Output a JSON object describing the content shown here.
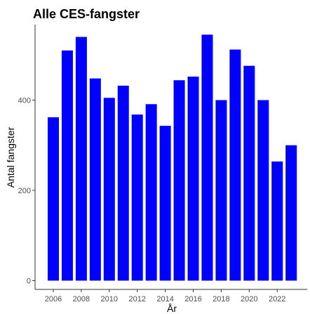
{
  "chart_data": {
    "type": "bar",
    "title": "Alle CES-fangster",
    "xlabel": "År",
    "ylabel": "Antal fangster",
    "categories": [
      "2006",
      "2007",
      "2008",
      "2009",
      "2010",
      "2011",
      "2012",
      "2013",
      "2014",
      "2015",
      "2016",
      "2017",
      "2018",
      "2019",
      "2020",
      "2021",
      "2022",
      "2023"
    ],
    "values": [
      362,
      510,
      540,
      448,
      405,
      432,
      368,
      391,
      343,
      444,
      452,
      545,
      400,
      512,
      476,
      400,
      264,
      300
    ],
    "x_ticks": [
      "2006",
      "2008",
      "2010",
      "2012",
      "2014",
      "2016",
      "2018",
      "2020",
      "2022"
    ],
    "y_ticks": [
      0,
      200,
      400
    ],
    "ylim": [
      0,
      560
    ],
    "bar_color": "#0000ff",
    "grid": false,
    "legend": "none"
  }
}
